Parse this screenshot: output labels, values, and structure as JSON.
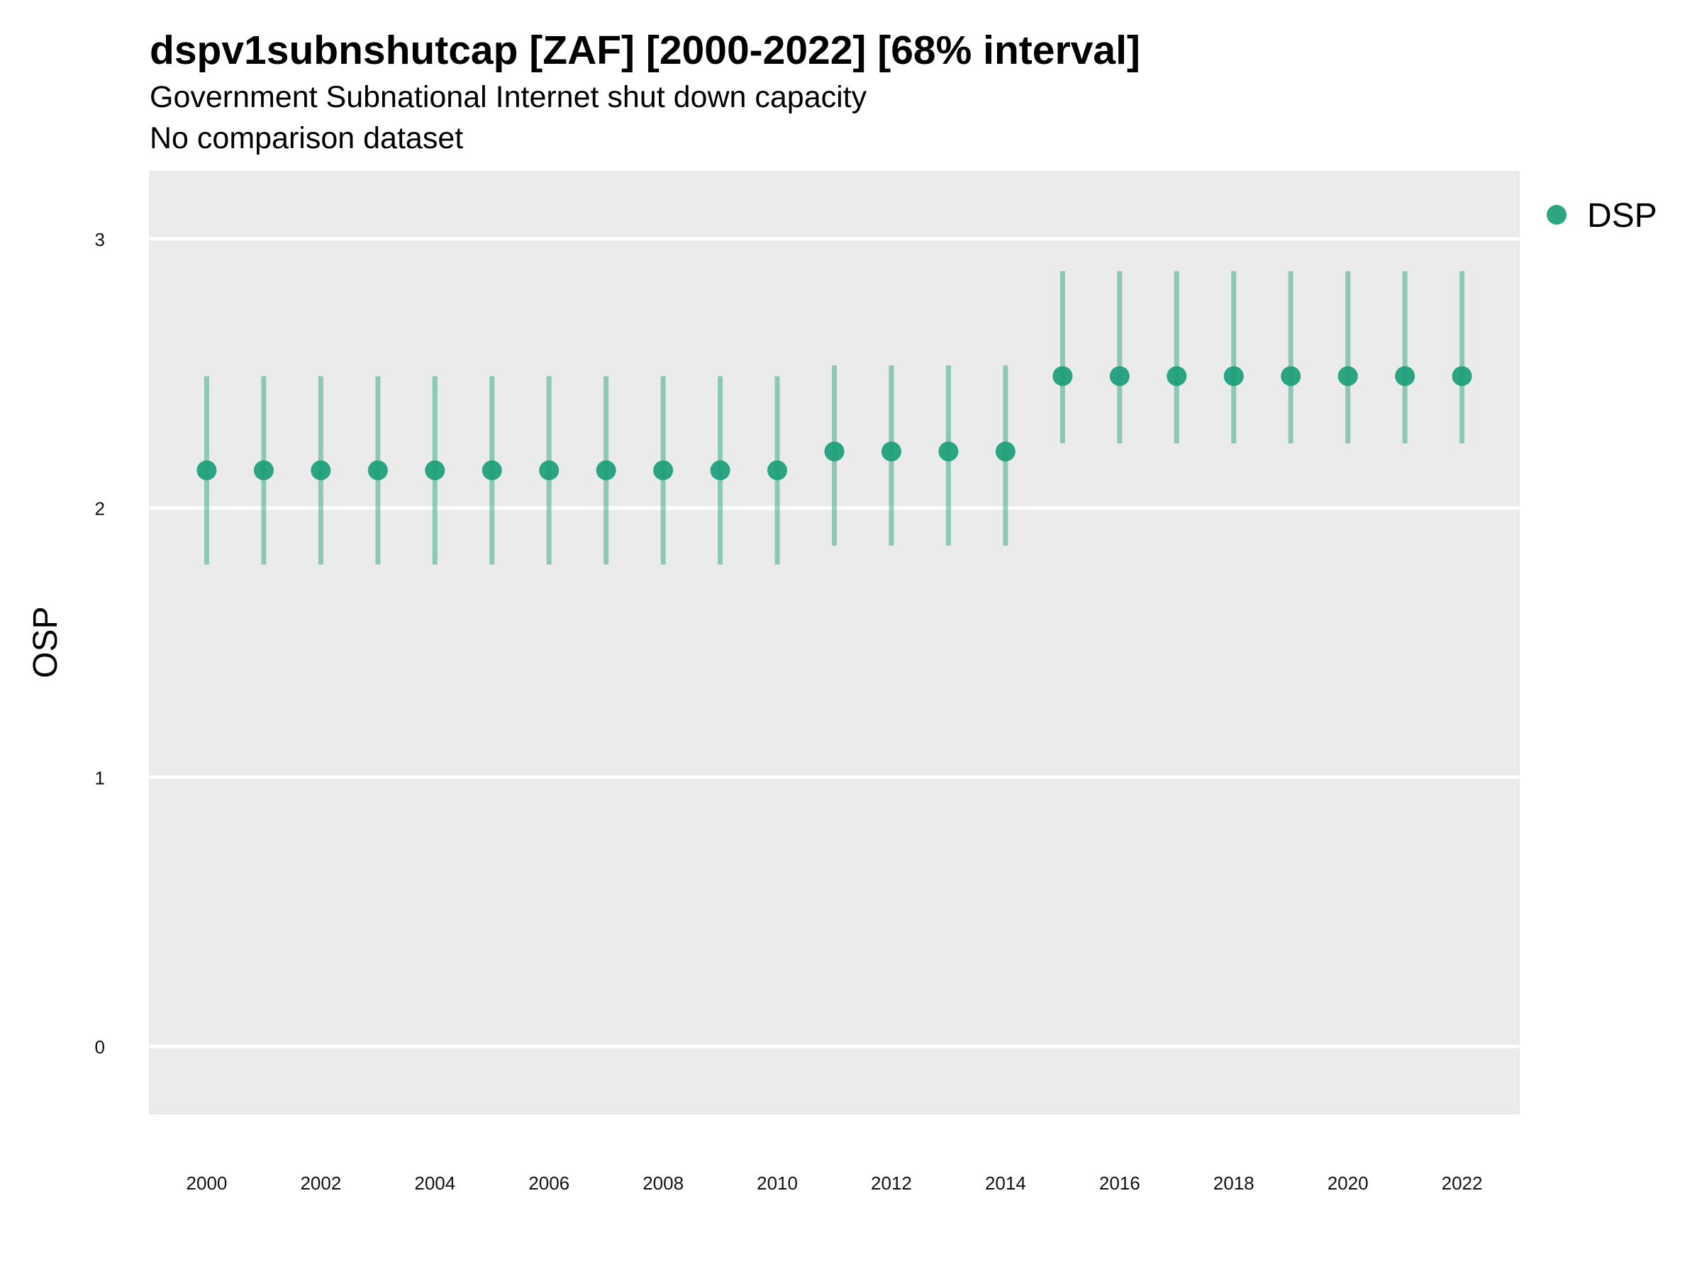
{
  "chart_data": {
    "type": "scatter",
    "title": "dspv1subnshutcap [ZAF] [2000-2022] [68% interval]",
    "subtitle": [
      "Government Subnational Internet shut down capacity",
      "No comparison dataset"
    ],
    "xlabel": "",
    "ylabel": "OSP",
    "ylim": [
      -0.25,
      3.25
    ],
    "xlim": [
      1999,
      2023
    ],
    "yticks": [
      0,
      1,
      2,
      3
    ],
    "xticks": [
      2000,
      2002,
      2004,
      2006,
      2008,
      2010,
      2012,
      2014,
      2016,
      2018,
      2020,
      2022
    ],
    "grid": true,
    "legend_position": "top-right",
    "series": [
      {
        "name": "DSP",
        "color": "#1a9e77",
        "x": [
          2000,
          2001,
          2002,
          2003,
          2004,
          2005,
          2006,
          2007,
          2008,
          2009,
          2010,
          2011,
          2012,
          2013,
          2014,
          2015,
          2016,
          2017,
          2018,
          2019,
          2020,
          2021,
          2022
        ],
        "y": [
          2.14,
          2.14,
          2.14,
          2.14,
          2.14,
          2.14,
          2.14,
          2.14,
          2.14,
          2.14,
          2.14,
          2.21,
          2.21,
          2.21,
          2.21,
          2.49,
          2.49,
          2.49,
          2.49,
          2.49,
          2.49,
          2.49,
          2.49
        ],
        "lower": [
          1.79,
          1.79,
          1.79,
          1.79,
          1.79,
          1.79,
          1.79,
          1.79,
          1.79,
          1.79,
          1.79,
          1.86,
          1.86,
          1.86,
          1.86,
          2.24,
          2.24,
          2.24,
          2.24,
          2.24,
          2.24,
          2.24,
          2.24
        ],
        "upper": [
          2.49,
          2.49,
          2.49,
          2.49,
          2.49,
          2.49,
          2.49,
          2.49,
          2.49,
          2.49,
          2.49,
          2.53,
          2.53,
          2.53,
          2.53,
          2.88,
          2.88,
          2.88,
          2.88,
          2.88,
          2.88,
          2.88,
          2.88
        ]
      }
    ]
  }
}
